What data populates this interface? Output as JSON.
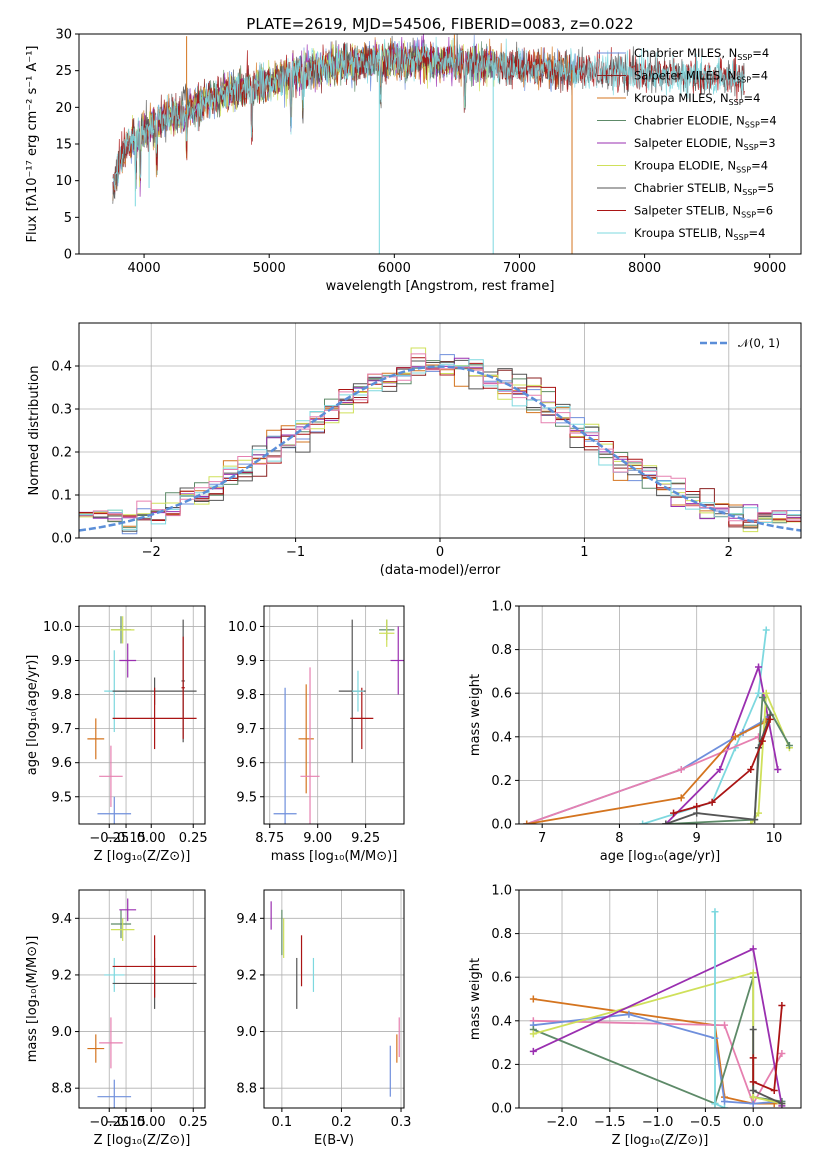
{
  "figure": {
    "title": "PLATE=2619, MJD=54506, FIBERID=0083, z=0.022"
  },
  "colors": {
    "Chabrier MILES": "#6f8fdc",
    "Salpeter MILES": "#8b2222",
    "Kroupa MILES": "#d4741f",
    "Chabrier ELODIE": "#5d8a68",
    "Salpeter ELODIE": "#9a2fb0",
    "Kroupa ELODIE": "#cfe05a",
    "Chabrier STELIB": "#555555",
    "Salpeter STELIB": "#aa1414",
    "Kroupa STELIB": "#7dd8df",
    "pink": "#e680b0",
    "normal": "#5b8ed8"
  },
  "chart_data": [
    {
      "type": "line",
      "name": "spectrum",
      "xlabel": "wavelength [Angstrom, rest frame]",
      "ylabel": "Flux [fλ10⁻¹⁷ erg cm⁻² s⁻¹ A⁻¹]",
      "xlim": [
        3480,
        9250
      ],
      "ylim": [
        0,
        30
      ],
      "xticks": [
        4000,
        5000,
        6000,
        7000,
        8000,
        9000
      ],
      "yticks": [
        0,
        5,
        10,
        15,
        20,
        25,
        30
      ],
      "legend_position": "upper-right",
      "continuum": {
        "x": [
          3750,
          3800,
          3850,
          3900,
          3950,
          4000,
          4100,
          4200,
          4300,
          4400,
          4500,
          4700,
          5000,
          5300,
          5600,
          6000,
          6300,
          6600,
          6900,
          7200,
          7500,
          7800,
          8100,
          8400,
          8800
        ],
        "y": [
          8.5,
          12.5,
          14.5,
          15.5,
          16,
          17,
          18,
          19,
          18.5,
          20,
          21,
          22,
          23.5,
          25,
          26,
          26.5,
          26.2,
          26,
          25.6,
          25.2,
          25,
          24.8,
          24.5,
          24.2,
          23.8
        ]
      },
      "series": [
        {
          "name": "Chabrier MILES, N_SSP=4",
          "x_range": [
            3750,
            7450
          ]
        },
        {
          "name": "Salpeter MILES, N_SSP=4",
          "x_range": [
            3750,
            7450
          ]
        },
        {
          "name": "Kroupa MILES, N_SSP=4",
          "x_range": [
            3750,
            7450
          ]
        },
        {
          "name": "Chabrier ELODIE, N_SSP=4",
          "x_range": [
            3900,
            6800
          ]
        },
        {
          "name": "Salpeter ELODIE, N_SSP=3",
          "x_range": [
            3900,
            6800
          ]
        },
        {
          "name": "Kroupa ELODIE, N_SSP=4",
          "x_range": [
            3900,
            6800
          ]
        },
        {
          "name": "Chabrier STELIB, N_SSP=5",
          "x_range": [
            3750,
            8800
          ]
        },
        {
          "name": "Salpeter STELIB, N_SSP=6",
          "x_range": [
            3750,
            8800
          ]
        },
        {
          "name": "Kroupa STELIB, N_SSP=4",
          "x_range": [
            3750,
            8800
          ]
        }
      ]
    },
    {
      "type": "histogram",
      "name": "residuals",
      "xlabel": "(data-model)/error",
      "ylabel": "Normed distribution",
      "xlim": [
        -2.5,
        2.5
      ],
      "ylim": [
        0,
        0.5
      ],
      "xticks": [
        -2,
        -1,
        0,
        1,
        2
      ],
      "yticks": [
        0.0,
        0.1,
        0.2,
        0.3,
        0.4
      ],
      "legend": "𝒩(0, 1)",
      "bin_width": 0.1,
      "normal_mean": 0,
      "normal_sigma": 1
    },
    {
      "type": "scatter",
      "name": "age-vs-Z",
      "xlabel": "Z [log₁₀(Z/Z⊙)]",
      "ylabel": "age  [log₁₀(age/yr)]",
      "xlim": [
        -0.43,
        0.32
      ],
      "ylim": [
        9.42,
        10.06
      ],
      "xticks": [
        -0.25,
        -0.15,
        0.0,
        0.25
      ],
      "xtick_labels": [
        "−0.25",
        "−0.15",
        "0.00",
        "0.25"
      ],
      "yticks": [
        9.5,
        9.6,
        9.7,
        9.8,
        9.9,
        10.0
      ],
      "points": [
        {
          "c": "Chabrier MILES",
          "x": -0.22,
          "xe": 0.1,
          "y": 9.45,
          "ye": 0.05
        },
        {
          "c": "Kroupa MILES",
          "x": -0.33,
          "xe": 0.05,
          "y": 9.67,
          "ye": 0.06
        },
        {
          "c": "pink",
          "x": -0.24,
          "xe": 0.07,
          "y": 9.56,
          "ye": 0.09
        },
        {
          "c": "Kroupa STELIB",
          "x": -0.22,
          "xe": 0.06,
          "y": 9.81,
          "ye": 0.12
        },
        {
          "c": "Chabrier STELIB",
          "x": 0.02,
          "xe": 0.25,
          "y": 9.81,
          "ye": 0.04
        },
        {
          "c": "Salpeter STELIB",
          "x": 0.02,
          "xe": 0.25,
          "y": 9.73,
          "ye": 0.09
        },
        {
          "c": "Chabrier ELODIE",
          "x": -0.18,
          "xe": 0.06,
          "y": 9.99,
          "ye": 0.04
        },
        {
          "c": "Kroupa ELODIE",
          "x": -0.17,
          "xe": 0.07,
          "y": 9.99,
          "ye": 0.04
        },
        {
          "c": "Salpeter ELODIE",
          "x": -0.14,
          "xe": 0.05,
          "y": 9.9,
          "ye": 0.05
        },
        {
          "c": "Chabrier STELIB",
          "x": 0.19,
          "xe": 0.01,
          "y": 9.84,
          "ye": 0.18
        },
        {
          "c": "Salpeter STELIB",
          "x": 0.19,
          "xe": 0.01,
          "y": 9.82,
          "ye": 0.15
        }
      ]
    },
    {
      "type": "scatter",
      "name": "age-vs-mass",
      "xlabel": "mass [log₁₀(M/M⊙)]",
      "ylabel": "",
      "xlim": [
        8.72,
        9.45
      ],
      "ylim": [
        9.42,
        10.06
      ],
      "xticks": [
        8.75,
        9.0,
        9.25
      ],
      "xtick_labels": [
        "8.75",
        "9.00",
        "9.25"
      ],
      "yticks": [
        9.5,
        9.6,
        9.7,
        9.8,
        9.9,
        10.0
      ],
      "points": [
        {
          "c": "Chabrier MILES",
          "x": 8.83,
          "xe": 0.06,
          "y": 9.45,
          "ye": 0.37
        },
        {
          "c": "Kroupa MILES",
          "x": 8.94,
          "xe": 0.04,
          "y": 9.67,
          "ye": 0.16
        },
        {
          "c": "pink",
          "x": 8.96,
          "xe": 0.05,
          "y": 9.56,
          "ye": 0.32
        },
        {
          "c": "Chabrier STELIB",
          "x": 9.18,
          "xe": 0.07,
          "y": 9.81,
          "ye": 0.21
        },
        {
          "c": "Salpeter STELIB",
          "x": 9.23,
          "xe": 0.06,
          "y": 9.73,
          "ye": 0.09
        },
        {
          "c": "Kroupa STELIB",
          "x": 9.21,
          "xe": 0.03,
          "y": 9.81,
          "ye": 0.06
        },
        {
          "c": "Chabrier ELODIE",
          "x": 9.36,
          "xe": 0.04,
          "y": 9.99,
          "ye": 0.03
        },
        {
          "c": "Kroupa ELODIE",
          "x": 9.36,
          "xe": 0.04,
          "y": 9.98,
          "ye": 0.04
        },
        {
          "c": "Salpeter ELODIE",
          "x": 9.42,
          "xe": 0.04,
          "y": 9.9,
          "ye": 0.1
        }
      ]
    },
    {
      "type": "line",
      "name": "mass-weight-vs-age",
      "xlabel": "age  [log₁₀(age/yr)]",
      "ylabel": "mass weight",
      "xlim": [
        6.7,
        10.35
      ],
      "ylim": [
        0,
        1
      ],
      "xticks": [
        7,
        8,
        9,
        10
      ],
      "yticks": [
        0.0,
        0.2,
        0.4,
        0.6,
        0.8,
        1.0
      ],
      "series": [
        {
          "c": "Kroupa STELIB",
          "x": [
            8.3,
            9.2,
            9.5,
            9.8,
            9.9
          ],
          "y": [
            0.0,
            0.1,
            0.35,
            0.6,
            0.89
          ]
        },
        {
          "c": "Salpeter ELODIE",
          "x": [
            8.6,
            9.3,
            9.8,
            10.05
          ],
          "y": [
            0.0,
            0.25,
            0.72,
            0.25
          ]
        },
        {
          "c": "Chabrier MILES",
          "x": [
            6.8,
            8.8,
            9.6,
            9.9
          ],
          "y": [
            0.0,
            0.25,
            0.42,
            0.48
          ]
        },
        {
          "c": "pink",
          "x": [
            6.8,
            8.8,
            9.8
          ],
          "y": [
            0.0,
            0.25,
            0.4
          ]
        },
        {
          "c": "Kroupa MILES",
          "x": [
            6.8,
            8.8,
            9.5,
            9.9
          ],
          "y": [
            0.0,
            0.12,
            0.4,
            0.47
          ]
        },
        {
          "c": "Kroupa ELODIE",
          "x": [
            9.7,
            9.8,
            9.9,
            10.2
          ],
          "y": [
            0.0,
            0.05,
            0.6,
            0.35
          ]
        },
        {
          "c": "Chabrier ELODIE",
          "x": [
            8.6,
            9.75,
            9.85,
            10.2
          ],
          "y": [
            0.0,
            0.02,
            0.58,
            0.36
          ]
        },
        {
          "c": "Chabrier STELIB",
          "x": [
            8.6,
            9.0,
            9.75,
            9.8,
            9.95
          ],
          "y": [
            0.0,
            0.05,
            0.02,
            0.35,
            0.5
          ]
        },
        {
          "c": "Salpeter STELIB",
          "x": [
            8.7,
            9.0,
            9.2,
            9.7,
            9.85,
            9.95
          ],
          "y": [
            0.05,
            0.08,
            0.1,
            0.25,
            0.38,
            0.48
          ]
        }
      ]
    },
    {
      "type": "scatter",
      "name": "mass-vs-Z",
      "xlabel": "Z [log₁₀(Z/Z⊙)]",
      "ylabel": "mass [log₁₀(M/M⊙)]",
      "xlim": [
        -0.43,
        0.32
      ],
      "ylim": [
        8.73,
        9.5
      ],
      "xticks": [
        -0.25,
        -0.15,
        0.0,
        0.25
      ],
      "xtick_labels": [
        "−0.25",
        "−0.15",
        "0.00",
        "0.25"
      ],
      "yticks": [
        8.8,
        9.0,
        9.2,
        9.4
      ],
      "points": [
        {
          "c": "Chabrier MILES",
          "x": -0.22,
          "xe": 0.1,
          "y": 8.77,
          "ye": 0.06
        },
        {
          "c": "Kroupa MILES",
          "x": -0.33,
          "xe": 0.05,
          "y": 8.94,
          "ye": 0.05
        },
        {
          "c": "pink",
          "x": -0.24,
          "xe": 0.07,
          "y": 8.96,
          "ye": 0.09
        },
        {
          "c": "Kroupa STELIB",
          "x": -0.22,
          "xe": 0.06,
          "y": 9.2,
          "ye": 0.06
        },
        {
          "c": "Chabrier STELIB",
          "x": 0.02,
          "xe": 0.25,
          "y": 9.17,
          "ye": 0.09
        },
        {
          "c": "Salpeter STELIB",
          "x": 0.02,
          "xe": 0.25,
          "y": 9.23,
          "ye": 0.11
        },
        {
          "c": "Chabrier ELODIE",
          "x": -0.18,
          "xe": 0.06,
          "y": 9.38,
          "ye": 0.05
        },
        {
          "c": "Kroupa ELODIE",
          "x": -0.17,
          "xe": 0.07,
          "y": 9.36,
          "ye": 0.04
        },
        {
          "c": "Salpeter ELODIE",
          "x": -0.14,
          "xe": 0.05,
          "y": 9.43,
          "ye": 0.04
        }
      ]
    },
    {
      "type": "scatter",
      "name": "mass-vs-EBV",
      "xlabel": "E(B-V)",
      "ylabel": "",
      "xlim": [
        0.07,
        0.305
      ],
      "ylim": [
        8.73,
        9.5
      ],
      "xticks": [
        0.1,
        0.2,
        0.3
      ],
      "xtick_labels": [
        "0.1",
        "0.2",
        "0.3"
      ],
      "yticks": [
        8.8,
        9.0,
        9.2,
        9.4
      ],
      "points": [
        {
          "c": "Salpeter ELODIE",
          "x": 0.082,
          "xe": 0,
          "y": 9.41,
          "ye": 0.05
        },
        {
          "c": "Chabrier ELODIE",
          "x": 0.1,
          "xe": 0,
          "y": 9.35,
          "ye": 0.08
        },
        {
          "c": "Kroupa ELODIE",
          "x": 0.103,
          "xe": 0,
          "y": 9.33,
          "ye": 0.07
        },
        {
          "c": "Chabrier STELIB",
          "x": 0.125,
          "xe": 0,
          "y": 9.17,
          "ye": 0.09
        },
        {
          "c": "Salpeter STELIB",
          "x": 0.133,
          "xe": 0,
          "y": 9.25,
          "ye": 0.09
        },
        {
          "c": "Kroupa STELIB",
          "x": 0.153,
          "xe": 0,
          "y": 9.2,
          "ye": 0.06
        },
        {
          "c": "Chabrier MILES",
          "x": 0.282,
          "xe": 0,
          "y": 8.86,
          "ye": 0.09
        },
        {
          "c": "Kroupa MILES",
          "x": 0.293,
          "xe": 0,
          "y": 8.94,
          "ye": 0.05
        },
        {
          "c": "pink",
          "x": 0.297,
          "xe": 0,
          "y": 8.98,
          "ye": 0.07
        }
      ]
    },
    {
      "type": "line",
      "name": "mass-weight-vs-Z",
      "xlabel": "Z [log₁₀(Z/Z⊙)]",
      "ylabel": "mass weight",
      "xlim": [
        -2.45,
        0.5
      ],
      "ylim": [
        0,
        1
      ],
      "xticks": [
        -2.0,
        -1.5,
        -1.0,
        -0.5,
        0.0
      ],
      "xtick_labels": [
        "−2.0",
        "−1.5",
        "−1.0",
        "−0.5",
        "0.0"
      ],
      "yticks": [
        0.0,
        0.2,
        0.4,
        0.6,
        0.8,
        1.0
      ],
      "series": [
        {
          "c": "Kroupa MILES",
          "x": [
            -2.3,
            -0.4,
            -0.3,
            0.0,
            0.22
          ],
          "y": [
            0.5,
            0.38,
            0.05,
            0.02,
            0.02
          ]
        },
        {
          "c": "pink",
          "x": [
            -2.3,
            -0.3,
            0.0,
            0.3
          ],
          "y": [
            0.4,
            0.38,
            0.02,
            0.25
          ]
        },
        {
          "c": "Chabrier MILES",
          "x": [
            -2.3,
            -1.3,
            -0.4,
            -0.3,
            0.0,
            0.3
          ],
          "y": [
            0.38,
            0.43,
            0.32,
            0.03,
            0.02,
            0.03
          ]
        },
        {
          "c": "Chabrier ELODIE",
          "x": [
            -2.3,
            -0.4,
            0.0,
            0.0,
            0.3
          ],
          "y": [
            0.36,
            0.02,
            0.6,
            0.05,
            0.03
          ]
        },
        {
          "c": "Kroupa ELODIE",
          "x": [
            -2.3,
            0.0,
            0.0,
            0.3
          ],
          "y": [
            0.34,
            0.62,
            0.05,
            0.02
          ]
        },
        {
          "c": "Salpeter ELODIE",
          "x": [
            -2.3,
            0.0,
            0.3
          ],
          "y": [
            0.26,
            0.73,
            0.01
          ]
        },
        {
          "c": "Kroupa STELIB",
          "x": [
            -0.4,
            -0.4,
            -0.3
          ],
          "y": [
            0.9,
            0.02,
            0.0
          ]
        },
        {
          "c": "Chabrier STELIB",
          "x": [
            0.0,
            0.0,
            0.3
          ],
          "y": [
            0.36,
            0.08,
            0.02
          ]
        },
        {
          "c": "Salpeter STELIB",
          "x": [
            0.0,
            0.0,
            0.22,
            0.3
          ],
          "y": [
            0.23,
            0.12,
            0.08,
            0.47
          ]
        }
      ]
    }
  ]
}
